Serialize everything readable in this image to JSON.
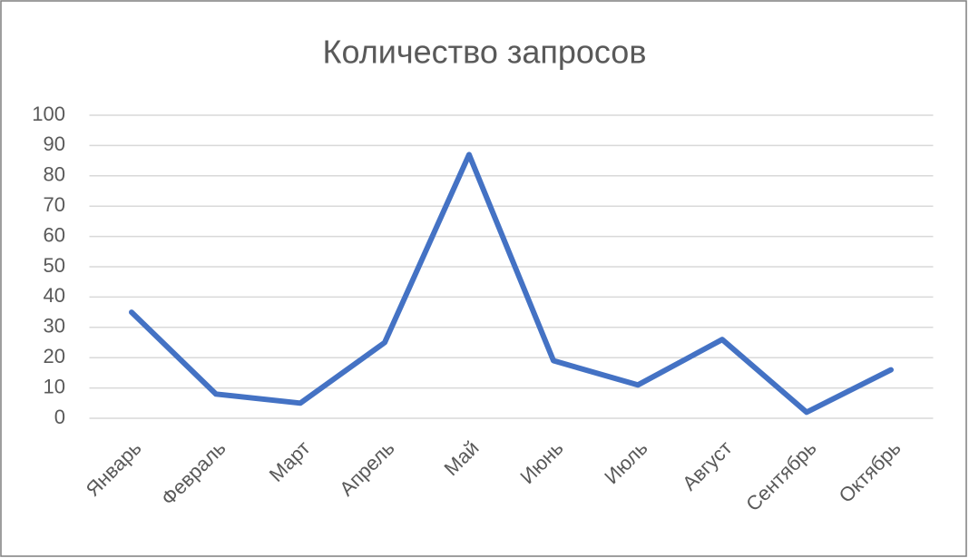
{
  "chart_data": {
    "type": "line",
    "title": "Количество запросов",
    "categories": [
      "Январь",
      "Февраль",
      "Март",
      "Апрель",
      "Май",
      "Июнь",
      "Июль",
      "Август",
      "Сентябрь",
      "Октябрь"
    ],
    "values": [
      35,
      8,
      5,
      25,
      87,
      19,
      11,
      26,
      2,
      16
    ],
    "color": "#4472c4",
    "ylim": [
      0,
      100
    ],
    "yticks": [
      0,
      10,
      20,
      30,
      40,
      50,
      60,
      70,
      80,
      90,
      100
    ],
    "grid": true
  }
}
